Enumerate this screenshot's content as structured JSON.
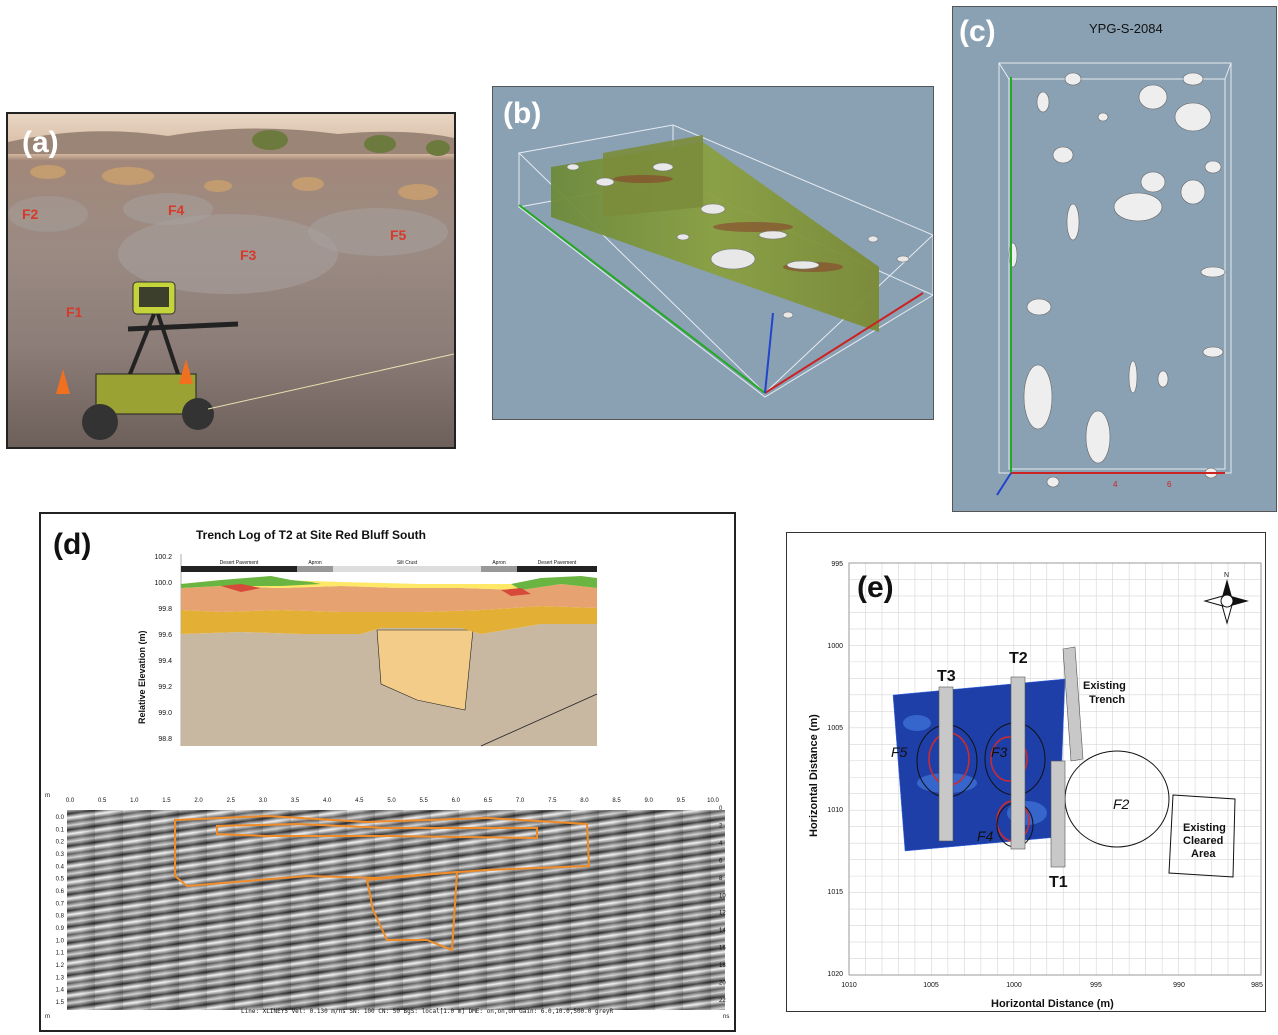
{
  "panels": {
    "a": {
      "label": "(a)",
      "features": [
        "F1",
        "F2",
        "F3",
        "F4",
        "F5"
      ]
    },
    "b": {
      "label": "(b)"
    },
    "c": {
      "label": "(c)",
      "title": "YPG-S-2084",
      "axis_ticks": [
        "4",
        "6"
      ]
    },
    "d": {
      "label": "(d)",
      "trench_title": "Trench Log of T2 at Site Red Bluff South",
      "ylabel": "Relative Elevation (m)",
      "yticks": [
        "100.2",
        "100.0",
        "99.8",
        "99.6",
        "99.4",
        "99.2",
        "99.0",
        "98.8"
      ],
      "zones": [
        "Desert Pavement",
        "Apron",
        "Silt Crust",
        "Apron",
        "Desert Pavement"
      ],
      "gpr_xticks": [
        "0.0",
        "0.5",
        "1.0",
        "1.5",
        "2.0",
        "2.5",
        "3.0",
        "3.5",
        "4.0",
        "4.5",
        "5.0",
        "5.5",
        "6.0",
        "6.5",
        "7.0",
        "7.5",
        "8.0",
        "8.5",
        "9.0",
        "9.5",
        "10.0"
      ],
      "gpr_yticks": [
        "0.0",
        "0.1",
        "0.2",
        "0.3",
        "0.4",
        "0.5",
        "0.6",
        "0.7",
        "0.8",
        "0.9",
        "1.0",
        "1.1",
        "1.2",
        "1.3",
        "1.4",
        "1.5"
      ],
      "gpr_rticks": [
        "0",
        "2",
        "4",
        "6",
        "8",
        "10",
        "12",
        "14",
        "16",
        "18",
        "20",
        "22"
      ],
      "unit_m": "m",
      "unit_ns": "ns",
      "footer": "Line: XLINEY5  Vel: 0.130 m/ns  SN: 100  CN: 50  BgS: local[1.0 m]  DME: on,on,on  Gain: 6.0,10.0,500.0  greyR"
    },
    "e": {
      "label": "(e)",
      "north": "N",
      "ylabel": "Horizontal Distance (m)",
      "xlabel": "Horizontal Distance (m)",
      "yticks": [
        "995",
        "1000",
        "1005",
        "1010",
        "1015",
        "1020"
      ],
      "xticks": [
        "1010",
        "1005",
        "1000",
        "995",
        "990",
        "985"
      ],
      "trenches": [
        "T3",
        "T2",
        "T1"
      ],
      "features": [
        "F5",
        "F3",
        "F4",
        "F2"
      ],
      "existing_trench": "Existing Trench",
      "cleared_area": "Existing Cleared Area"
    }
  },
  "colors": {
    "sky_blue_gray": "#8aa0b3",
    "gpr_orange": "#f08c28",
    "map_blue": "#1e3fa8",
    "trench_gray": "#c8c8c8"
  }
}
